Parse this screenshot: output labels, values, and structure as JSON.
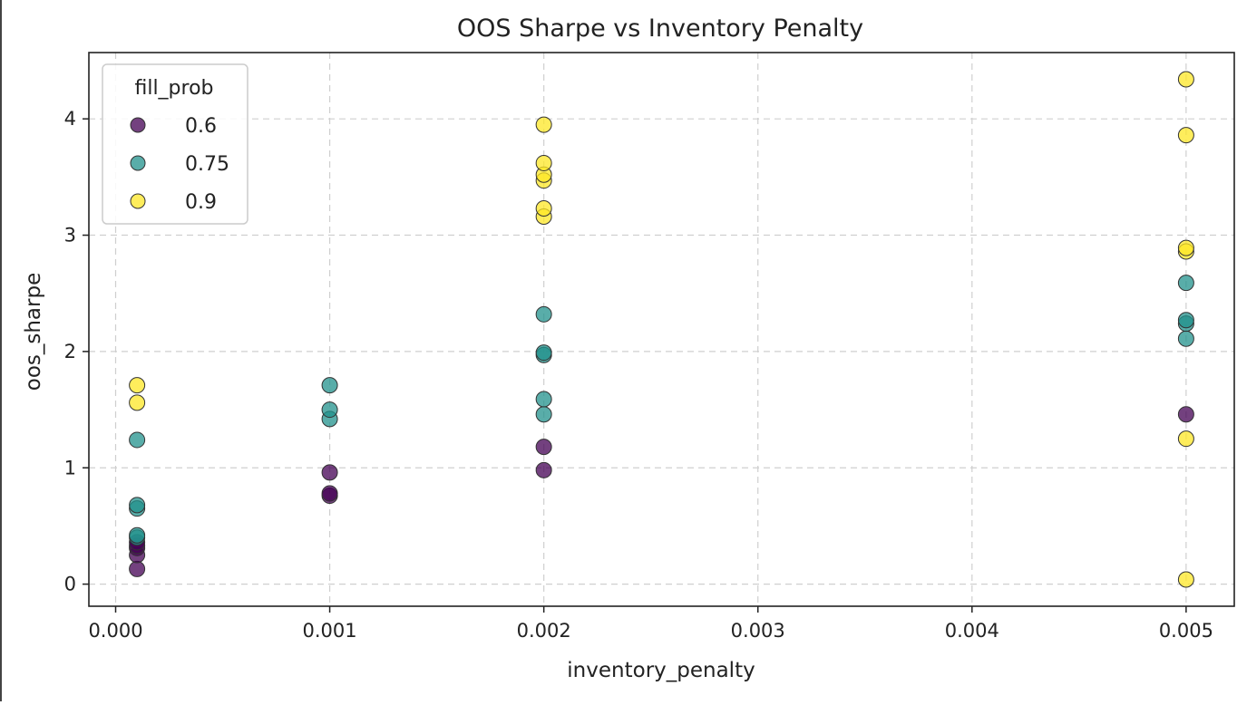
{
  "chart_data": {
    "type": "scatter",
    "title": "OOS Sharpe vs Inventory Penalty",
    "xlabel": "inventory_penalty",
    "ylabel": "oos_sharpe",
    "xlim": [
      -0.000125,
      0.005225
    ],
    "ylim": [
      -0.19,
      4.57
    ],
    "grid": true,
    "legend_title": "fill_prob",
    "legend_position": "upper-left",
    "x_ticks": [
      {
        "value": 0.0,
        "label": "0.000"
      },
      {
        "value": 0.001,
        "label": "0.001"
      },
      {
        "value": 0.002,
        "label": "0.002"
      },
      {
        "value": 0.003,
        "label": "0.003"
      },
      {
        "value": 0.004,
        "label": "0.004"
      },
      {
        "value": 0.005,
        "label": "0.005"
      }
    ],
    "y_ticks": [
      {
        "value": 0,
        "label": "0"
      },
      {
        "value": 1,
        "label": "1"
      },
      {
        "value": 2,
        "label": "2"
      },
      {
        "value": 3,
        "label": "3"
      },
      {
        "value": 4,
        "label": "4"
      }
    ],
    "series": [
      {
        "name": "0.6",
        "color": "#440154",
        "points": [
          [
            0.0001,
            0.13
          ],
          [
            0.0001,
            0.25
          ],
          [
            0.0001,
            0.31
          ],
          [
            0.0001,
            0.33
          ],
          [
            0.0001,
            0.36
          ],
          [
            0.001,
            0.76
          ],
          [
            0.001,
            0.78
          ],
          [
            0.001,
            0.96
          ],
          [
            0.002,
            0.98
          ],
          [
            0.002,
            1.18
          ],
          [
            0.005,
            1.46
          ]
        ]
      },
      {
        "name": "0.75",
        "color": "#21918c",
        "points": [
          [
            0.0001,
            0.4
          ],
          [
            0.0001,
            0.42
          ],
          [
            0.0001,
            0.65
          ],
          [
            0.0001,
            0.68
          ],
          [
            0.0001,
            1.24
          ],
          [
            0.001,
            1.42
          ],
          [
            0.001,
            1.5
          ],
          [
            0.001,
            1.71
          ],
          [
            0.002,
            1.46
          ],
          [
            0.002,
            1.59
          ],
          [
            0.002,
            1.97
          ],
          [
            0.002,
            1.99
          ],
          [
            0.002,
            2.32
          ],
          [
            0.005,
            2.11
          ],
          [
            0.005,
            2.24
          ],
          [
            0.005,
            2.27
          ],
          [
            0.005,
            2.59
          ]
        ]
      },
      {
        "name": "0.9",
        "color": "#fde725",
        "points": [
          [
            0.0001,
            1.56
          ],
          [
            0.0001,
            1.71
          ],
          [
            0.002,
            3.16
          ],
          [
            0.002,
            3.23
          ],
          [
            0.002,
            3.47
          ],
          [
            0.002,
            3.52
          ],
          [
            0.002,
            3.62
          ],
          [
            0.002,
            3.95
          ],
          [
            0.005,
            0.04
          ],
          [
            0.005,
            1.25
          ],
          [
            0.005,
            2.86
          ],
          [
            0.005,
            2.89
          ],
          [
            0.005,
            3.86
          ],
          [
            0.005,
            4.34
          ]
        ]
      }
    ]
  }
}
